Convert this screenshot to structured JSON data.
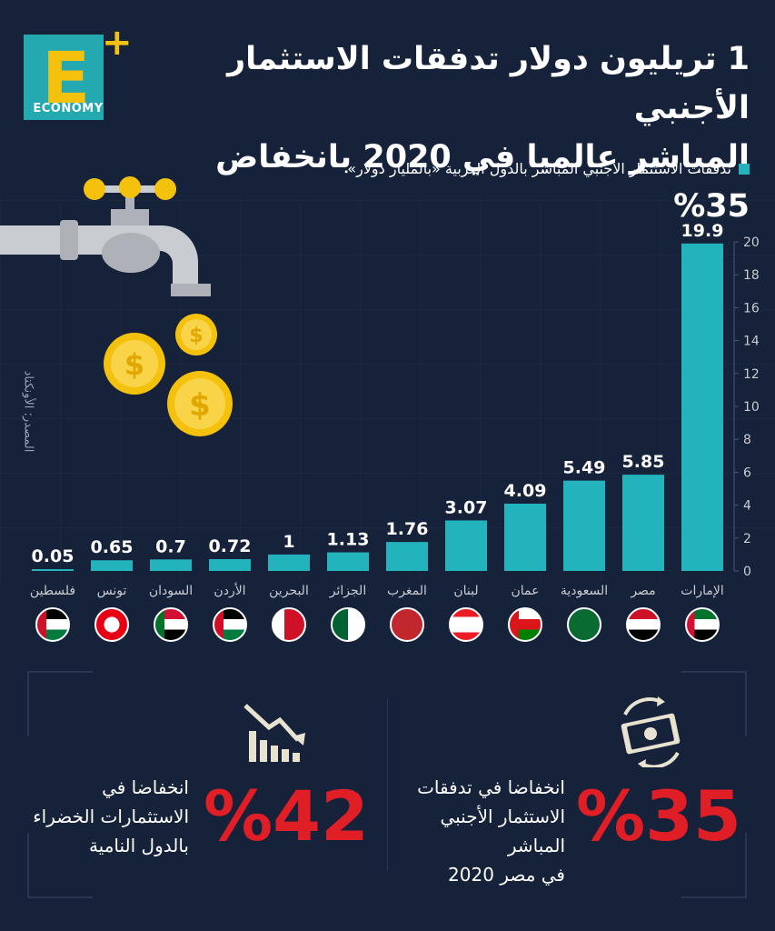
{
  "logo": {
    "letter": "E",
    "plus": "+",
    "word": "ECONOMY"
  },
  "title": {
    "line1": "1 تريليون دولار تدفقات الاستثمار الأجنبي",
    "line2": "المباشر عالميا في 2020 بانخفاض 35%"
  },
  "legend": {
    "label": "تدفقات الاستثمار الأجنبي المباشر بالدول العربية «بالمليار دولار»",
    "color": "#22b3bd"
  },
  "source": "المصدر: الأونكتاد",
  "chart_data": {
    "type": "bar",
    "categories": [
      "الإمارات",
      "مصر",
      "السعودية",
      "عمان",
      "لبنان",
      "المغرب",
      "الجزائر",
      "البحرين",
      "الأردن",
      "السودان",
      "تونس",
      "فلسطين"
    ],
    "values": [
      19.9,
      5.85,
      5.49,
      4.09,
      3.07,
      1.76,
      1.13,
      1,
      0.72,
      0.7,
      0.65,
      0.05
    ],
    "value_labels": [
      "19.9",
      "5.85",
      "5.49",
      "4.09",
      "3.07",
      "1.76",
      "1.13",
      "1",
      "0.72",
      "0.7",
      "0.65",
      "0.05"
    ],
    "ylim": [
      0,
      20
    ],
    "y_ticks": [
      0,
      2,
      4,
      6,
      8,
      10,
      12,
      14,
      16,
      18,
      20
    ],
    "y_axis_side": "right",
    "bar_color": "#22b3bd",
    "grid": false
  },
  "stats": [
    {
      "value": "%35",
      "text_lines": [
        "انخفاضا في تدفقات",
        "الاستثمار الأجنبي المباشر",
        "في مصر 2020"
      ],
      "icon": "money-cycle-icon"
    },
    {
      "value": "%42",
      "text_lines": [
        "انخفاضا في",
        "الاستثمارات الخضراء",
        "بالدول النامية"
      ],
      "icon": "declining-chart-icon"
    }
  ],
  "colors": {
    "background": "#16213a",
    "accent": "#22b3bd",
    "highlight": "#e01e26",
    "gold": "#f4c20d"
  }
}
